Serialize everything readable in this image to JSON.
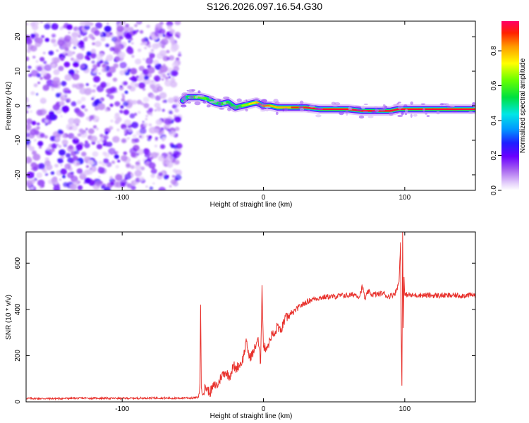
{
  "title": "S126.2026.097.16.54.G30",
  "chart_data": [
    {
      "type": "heatmap",
      "name": "spectrogram",
      "xlabel": "Height of straight line (km)",
      "ylabel": "Frequency (Hz)",
      "xlim": [
        -168,
        150
      ],
      "ylim": [
        -24.5,
        24.5
      ],
      "xticks": [
        -100,
        0,
        100
      ],
      "xtick_labels": [
        "-100",
        "0",
        "100"
      ],
      "yticks": [
        -20,
        -10,
        0,
        10,
        20
      ],
      "ytick_labels": [
        "-20",
        "-10",
        "0",
        "10",
        "20"
      ],
      "noise_region_x": [
        -168,
        -59
      ],
      "signal_track": {
        "x": [
          -57,
          -54,
          -50,
          -45,
          -40,
          -35,
          -30,
          -25,
          -20,
          -15,
          -10,
          -5,
          0,
          5,
          10,
          20,
          30,
          40,
          50,
          60,
          70,
          75,
          80,
          85,
          90,
          95,
          100,
          110,
          120,
          130,
          140,
          150
        ],
        "freq": [
          1.5,
          2.5,
          2.5,
          2.5,
          2.0,
          1.0,
          0.5,
          1.0,
          -0.5,
          0.0,
          0.5,
          1.0,
          0.0,
          0.0,
          -0.5,
          -0.5,
          -0.5,
          -1.0,
          -1.0,
          -1.0,
          -1.5,
          -1.5,
          -1.5,
          -1.5,
          -1.5,
          -1.0,
          -1.0,
          -1.0,
          -1.0,
          -1.0,
          -1.0,
          -1.0
        ],
        "amplitude": [
          0.3,
          0.5,
          0.6,
          0.7,
          0.6,
          0.5,
          0.6,
          0.6,
          0.5,
          0.6,
          0.8,
          0.8,
          0.9,
          0.9,
          0.8,
          0.9,
          1.0,
          1.0,
          1.0,
          1.0,
          1.0,
          1.0,
          1.0,
          1.0,
          1.0,
          1.0,
          1.0,
          1.0,
          1.0,
          1.0,
          1.0,
          1.0
        ]
      },
      "colorbar": {
        "label": "Normalized spectral amplitude",
        "range": [
          0,
          0.97
        ],
        "ticks": [
          0.0,
          0.2,
          0.4,
          0.6,
          0.8
        ],
        "tick_labels": [
          "0.0",
          "0.2",
          "0.4",
          "0.6",
          "0.8"
        ]
      }
    },
    {
      "type": "line",
      "name": "snr",
      "xlabel": "Height of straight line (km)",
      "ylabel": "SNR (10 * v/v)",
      "xlim": [
        -168,
        150
      ],
      "ylim": [
        0,
        735
      ],
      "xticks": [
        -100,
        0,
        100
      ],
      "xtick_labels": [
        "-100",
        "0",
        "100"
      ],
      "yticks": [
        0,
        200,
        400,
        600
      ],
      "ytick_labels": [
        "0",
        "200",
        "400",
        "600"
      ],
      "color": "#e8312c",
      "series": [
        {
          "name": "SNR",
          "x": [
            -168,
            -150,
            -125,
            -100,
            -75,
            -60,
            -55,
            -50,
            -46,
            -45,
            -44.5,
            -44,
            -43,
            -41,
            -38,
            -35,
            -32,
            -30,
            -27,
            -24,
            -21,
            -20,
            -18,
            -15,
            -12,
            -10,
            -7,
            -4,
            -2,
            -1,
            0,
            2,
            4,
            6,
            8,
            10,
            12,
            15,
            18,
            20,
            25,
            30,
            35,
            40,
            45,
            50,
            55,
            60,
            65,
            68,
            70,
            72,
            74,
            76,
            80,
            85,
            88,
            92,
            94,
            96,
            97,
            97.5,
            98,
            98.5,
            99,
            99.5,
            100,
            102,
            105,
            110,
            120,
            130,
            140,
            150
          ],
          "y": [
            15,
            14,
            16,
            15,
            17,
            15,
            18,
            16,
            20,
            80,
            420,
            60,
            30,
            65,
            40,
            70,
            75,
            110,
            130,
            110,
            160,
            140,
            155,
            175,
            260,
            190,
            215,
            275,
            170,
            505,
            235,
            235,
            255,
            295,
            285,
            335,
            300,
            355,
            375,
            380,
            410,
            430,
            445,
            450,
            455,
            455,
            460,
            460,
            465,
            455,
            500,
            440,
            480,
            465,
            465,
            470,
            455,
            465,
            480,
            520,
            690,
            300,
            70,
            735,
            320,
            540,
            460,
            465,
            460,
            462,
            460,
            460,
            460,
            462
          ]
        }
      ]
    }
  ]
}
